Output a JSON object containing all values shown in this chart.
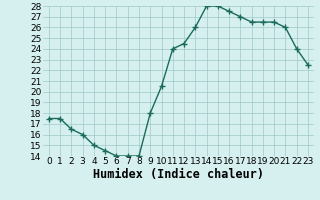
{
  "x": [
    0,
    1,
    2,
    3,
    4,
    5,
    6,
    7,
    8,
    9,
    10,
    11,
    12,
    13,
    14,
    15,
    16,
    17,
    18,
    19,
    20,
    21,
    22,
    23
  ],
  "y": [
    17.5,
    17.5,
    16.5,
    16.0,
    15.0,
    14.5,
    14.0,
    14.0,
    14.0,
    18.0,
    20.5,
    24.0,
    24.5,
    26.0,
    28.0,
    28.0,
    27.5,
    27.0,
    26.5,
    26.5,
    26.5,
    26.0,
    24.0,
    22.5
  ],
  "line_color": "#1a6b5a",
  "marker": "+",
  "marker_size": 4,
  "bg_color": "#d6f0f0",
  "grid_color": "#a0c8c8",
  "xlabel": "Humidex (Indice chaleur)",
  "xlim": [
    -0.5,
    23.5
  ],
  "ylim": [
    14,
    28
  ],
  "yticks": [
    14,
    15,
    16,
    17,
    18,
    19,
    20,
    21,
    22,
    23,
    24,
    25,
    26,
    27,
    28
  ],
  "xticks": [
    0,
    1,
    2,
    3,
    4,
    5,
    6,
    7,
    8,
    9,
    10,
    11,
    12,
    13,
    14,
    15,
    16,
    17,
    18,
    19,
    20,
    21,
    22,
    23
  ],
  "tick_label_fontsize": 6.5,
  "xlabel_fontsize": 8.5,
  "linewidth": 1.0,
  "markeredgewidth": 1.0
}
